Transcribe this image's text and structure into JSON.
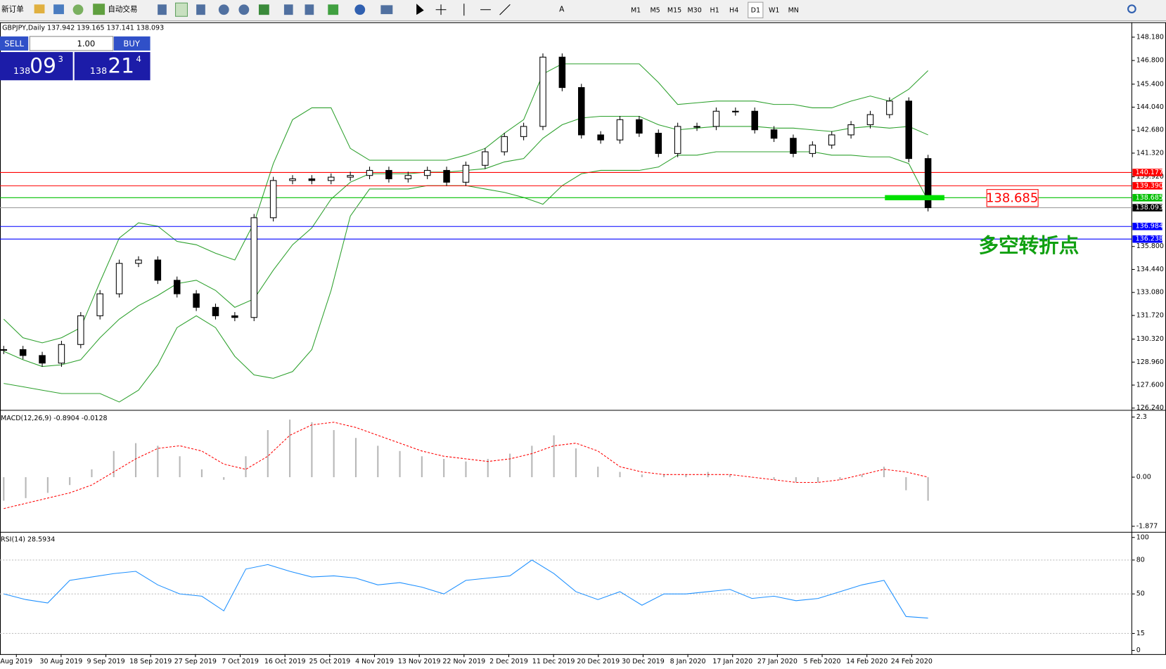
{
  "toolbar": {
    "new_order": "新订单",
    "auto_trading": "自动交易",
    "timeframes": [
      "M1",
      "M5",
      "M15",
      "M30",
      "H1",
      "H4",
      "D1",
      "W1",
      "MN"
    ]
  },
  "trade_panel": {
    "sell": "SELL",
    "lot": "1.00",
    "buy": "BUY",
    "bid": {
      "big": "138",
      "pips": "09",
      "point": "3"
    },
    "ask": {
      "big": "138",
      "pips": "21",
      "point": "4"
    }
  },
  "chart": {
    "symbol_info": "GBPJPY,Daily  137.942 139.165 137.141 138.093",
    "ylim": [
      126.24,
      148.18
    ],
    "yticks": [
      {
        "value": 148.18,
        "label": "148.180"
      },
      {
        "value": 146.8,
        "label": "146.800"
      },
      {
        "value": 145.4,
        "label": "145.400"
      },
      {
        "value": 144.04,
        "label": "144.040"
      },
      {
        "value": 142.68,
        "label": "142.680"
      },
      {
        "value": 141.32,
        "label": "141.320"
      },
      {
        "value": 139.92,
        "label": "139.920"
      },
      {
        "value": 135.8,
        "label": "135.800"
      },
      {
        "value": 134.44,
        "label": "134.440"
      },
      {
        "value": 133.08,
        "label": "133.080"
      },
      {
        "value": 131.72,
        "label": "131.720"
      },
      {
        "value": 130.32,
        "label": "130.320"
      },
      {
        "value": 128.96,
        "label": "128.960"
      },
      {
        "value": 127.6,
        "label": "127.600"
      },
      {
        "value": 126.24,
        "label": "126.240"
      }
    ],
    "levels": [
      {
        "value": 140.177,
        "label": "140.177",
        "color": "#ff0000"
      },
      {
        "value": 139.39,
        "label": "139.390",
        "color": "#ff0000"
      },
      {
        "value": 138.685,
        "label": "138.685",
        "color": "#00c000"
      },
      {
        "value": 138.093,
        "label": "138.093",
        "color": "#000000"
      },
      {
        "value": 136.984,
        "label": "136.984",
        "color": "#0000ff"
      },
      {
        "value": 136.238,
        "label": "136.238",
        "color": "#0000ff"
      }
    ],
    "close": [
      129.7,
      129.35,
      128.9,
      130.0,
      131.7,
      133.0,
      134.8,
      135.0,
      133.8,
      133.0,
      132.2,
      131.7,
      131.6,
      137.5,
      139.7,
      139.8,
      139.7,
      139.9,
      140.0,
      140.3,
      139.8,
      140.0,
      140.3,
      139.6,
      140.6,
      141.4,
      142.3,
      142.9,
      147.0,
      145.2,
      142.4,
      142.1,
      143.3,
      142.5,
      141.3,
      142.9,
      142.9,
      143.8,
      143.8,
      142.7,
      142.2,
      141.3,
      141.8,
      142.4,
      143.0,
      143.6,
      144.4,
      141.0,
      138.093
    ],
    "band_upper": [
      131.5,
      130.4,
      130.1,
      130.4,
      131.0,
      133.7,
      136.3,
      137.2,
      137.0,
      136.1,
      135.9,
      135.4,
      135.0,
      137.2,
      140.7,
      143.3,
      144.0,
      144.0,
      141.6,
      140.9,
      140.9,
      140.9,
      140.9,
      140.9,
      141.2,
      141.6,
      142.5,
      143.3,
      146.0,
      146.6,
      146.6,
      146.6,
      146.6,
      146.6,
      145.5,
      144.2,
      144.3,
      144.4,
      144.4,
      144.4,
      144.2,
      144.2,
      144.0,
      144.0,
      144.4,
      144.7,
      144.4,
      145.1,
      146.2
    ],
    "band_middle": [
      129.6,
      129.1,
      128.7,
      128.8,
      129.1,
      130.4,
      131.5,
      132.3,
      132.9,
      133.6,
      133.8,
      133.2,
      132.2,
      132.7,
      134.4,
      135.9,
      136.9,
      138.6,
      139.6,
      140.1,
      140.1,
      140.1,
      140.2,
      140.2,
      140.3,
      140.4,
      140.8,
      141.0,
      142.2,
      143.0,
      143.4,
      143.5,
      143.5,
      143.5,
      143.0,
      142.7,
      142.8,
      142.9,
      142.9,
      142.9,
      142.8,
      142.8,
      142.7,
      142.6,
      142.8,
      142.9,
      142.8,
      142.9,
      142.4
    ],
    "band_lower": [
      127.7,
      127.5,
      127.3,
      127.1,
      127.1,
      127.1,
      126.6,
      127.3,
      128.8,
      131.0,
      131.7,
      131.0,
      129.3,
      128.2,
      128.0,
      128.4,
      129.7,
      133.2,
      137.6,
      139.2,
      139.2,
      139.2,
      139.4,
      139.4,
      139.4,
      139.2,
      139.0,
      138.7,
      138.3,
      139.4,
      140.1,
      140.3,
      140.3,
      140.3,
      140.5,
      141.2,
      141.2,
      141.4,
      141.4,
      141.4,
      141.4,
      141.4,
      141.4,
      141.2,
      141.2,
      141.1,
      141.1,
      140.7,
      138.5
    ],
    "annotation": {
      "value": 138.685,
      "label": "138.685",
      "note": "多空转折点"
    },
    "macd": {
      "title": "MACD(12,26,9) -0.8904 -0.0128",
      "ylim": [
        -1.877,
        2.3
      ],
      "ticks": [
        2.3,
        {
          "value": 0,
          "label": "0.00"
        },
        -1.877
      ],
      "histogram": [
        -0.9,
        -0.8,
        -0.6,
        -0.3,
        0.3,
        1.0,
        1.3,
        1.2,
        0.8,
        0.3,
        -0.1,
        0.8,
        1.8,
        2.2,
        2.1,
        1.8,
        1.5,
        1.2,
        1.0,
        0.8,
        0.7,
        0.6,
        0.7,
        0.9,
        1.2,
        1.6,
        1.1,
        0.4,
        0.2,
        0.1,
        0.1,
        0.1,
        0.2,
        0.1,
        0.0,
        -0.1,
        -0.2,
        -0.2,
        -0.1,
        0.1,
        0.4,
        -0.5,
        -0.9
      ],
      "signal": [
        -1.2,
        -1.0,
        -0.8,
        -0.6,
        -0.3,
        0.2,
        0.7,
        1.1,
        1.2,
        1.0,
        0.5,
        0.3,
        0.8,
        1.6,
        2.0,
        2.1,
        1.9,
        1.6,
        1.3,
        1.0,
        0.8,
        0.7,
        0.6,
        0.7,
        0.9,
        1.2,
        1.3,
        1.0,
        0.4,
        0.2,
        0.1,
        0.1,
        0.1,
        0.1,
        0.0,
        -0.1,
        -0.2,
        -0.2,
        -0.1,
        0.1,
        0.3,
        0.2,
        0.0
      ]
    },
    "rsi": {
      "title": "RSI(14) 28.5934",
      "ylim": [
        0,
        100
      ],
      "ticks": [
        100,
        80,
        50,
        15,
        0
      ],
      "levels": [
        80,
        50,
        15
      ],
      "values": [
        50,
        45,
        42,
        62,
        65,
        68,
        70,
        58,
        50,
        48,
        35,
        72,
        76,
        70,
        65,
        66,
        64,
        58,
        60,
        56,
        50,
        62,
        64,
        66,
        80,
        68,
        52,
        45,
        52,
        40,
        50,
        50,
        52,
        54,
        46,
        48,
        44,
        46,
        52,
        58,
        62,
        30,
        28.6
      ]
    },
    "dates": [
      "Aug 2019",
      "30 Aug 2019",
      "9 Sep 2019",
      "18 Sep 2019",
      "27 Sep 2019",
      "7 Oct 2019",
      "16 Oct 2019",
      "25 Oct 2019",
      "4 Nov 2019",
      "13 Nov 2019",
      "22 Nov 2019",
      "2 Dec 2019",
      "11 Dec 2019",
      "20 Dec 2019",
      "30 Dec 2019",
      "8 Jan 2020",
      "17 Jan 2020",
      "27 Jan 2020",
      "5 Feb 2020",
      "14 Feb 2020",
      "24 Feb 2020"
    ]
  }
}
